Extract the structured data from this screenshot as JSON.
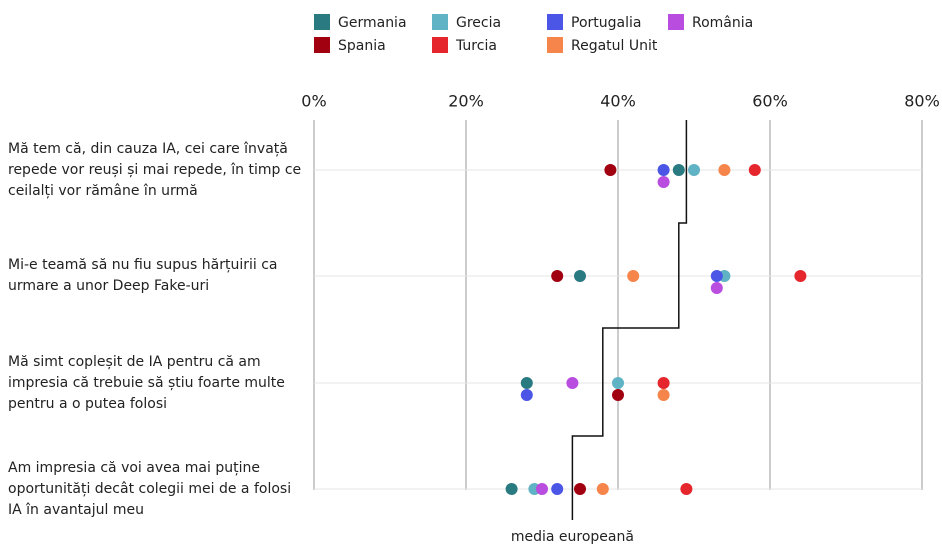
{
  "chart_data": {
    "type": "dot",
    "categories": [
      "Mă tem că, din cauza IA, cei care învață repede vor reuși și mai repede, în timp ce ceilalți vor rămâne în urmă",
      "Mi-e teamă să nu fiu supus hărțuirii ca urmare a unor Deep Fake-uri",
      "Mă simt copleșit de IA pentru că am impresia că trebuie să știu foarte multe pentru a o putea folosi",
      "Am impresia că voi avea mai puține oportunități decât colegii mei de a folosi IA în avantajul meu"
    ],
    "series": [
      {
        "name": "Germania",
        "color": "#2a7a82",
        "values": [
          48,
          35,
          28,
          26
        ]
      },
      {
        "name": "Grecia",
        "color": "#5fb3c4",
        "values": [
          50,
          54,
          40,
          29
        ]
      },
      {
        "name": "Portugalia",
        "color": "#4b55e6",
        "values": [
          46,
          53,
          28,
          32
        ]
      },
      {
        "name": "România",
        "color": "#b94de0",
        "values": [
          46,
          53,
          34,
          30
        ]
      },
      {
        "name": "Spania",
        "color": "#a0000f",
        "values": [
          39,
          32,
          40,
          35
        ]
      },
      {
        "name": "Turcia",
        "color": "#e5262d",
        "values": [
          58,
          64,
          46,
          49
        ]
      },
      {
        "name": "Regatul Unit",
        "color": "#f5854a",
        "values": [
          54,
          42,
          46,
          38
        ]
      }
    ],
    "average": {
      "name": "media europeană",
      "color": "#111111",
      "values": [
        49,
        48,
        38,
        34
      ]
    },
    "xlim": [
      0,
      80
    ],
    "xticks": [
      {
        "value": 0,
        "label": "0%"
      },
      {
        "value": 20,
        "label": "20%"
      },
      {
        "value": 40,
        "label": "40%"
      },
      {
        "value": 60,
        "label": "60%"
      },
      {
        "value": 80,
        "label": "80%"
      }
    ],
    "grid": true
  }
}
